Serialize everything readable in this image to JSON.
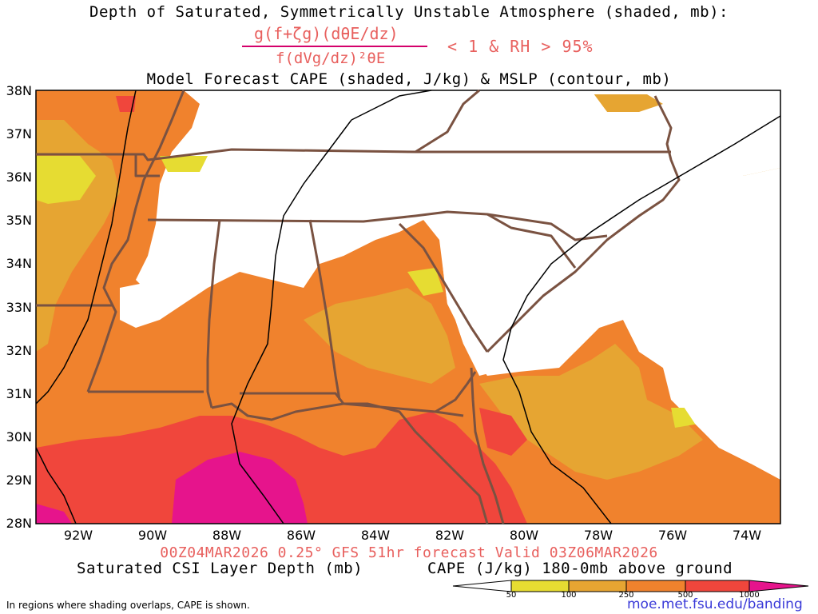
{
  "title": {
    "line1": "Depth of Saturated, Symmetrically Unstable Atmosphere (shaded, mb):",
    "fraction_numerator": "g(f+ζg)(dθE/dz)",
    "fraction_denominator": "f(dVg/dz)²θE",
    "condition": "< 1 & RH > 95%",
    "line3": "Model Forecast CAPE (shaded, J/kg) & MSLP (contour, mb)"
  },
  "model_run": "00Z04MAR2026 0.25° GFS 51hr forecast Valid 03Z06MAR2026",
  "legend": {
    "left_label": "Saturated CSI Layer Depth (mb)",
    "right_label": "CAPE (J/kg) 180-0mb above ground",
    "ticks": [
      "50",
      "100",
      "250",
      "500",
      "1000"
    ],
    "colors": [
      "#ffffff",
      "#e6dc32",
      "#e6a532",
      "#f0822d",
      "#f0463c",
      "#e6148c"
    ]
  },
  "axes": {
    "lat_labels": [
      "38N",
      "37N",
      "36N",
      "35N",
      "34N",
      "33N",
      "32N",
      "31N",
      "30N",
      "29N",
      "28N"
    ],
    "lon_labels": [
      "92W",
      "90W",
      "88W",
      "86W",
      "84W",
      "82W",
      "80W",
      "78W",
      "76W",
      "74W"
    ]
  },
  "footnote": "In regions where shading overlaps, CAPE is shown.",
  "source_url": "moe.met.fsu.edu/banding"
}
